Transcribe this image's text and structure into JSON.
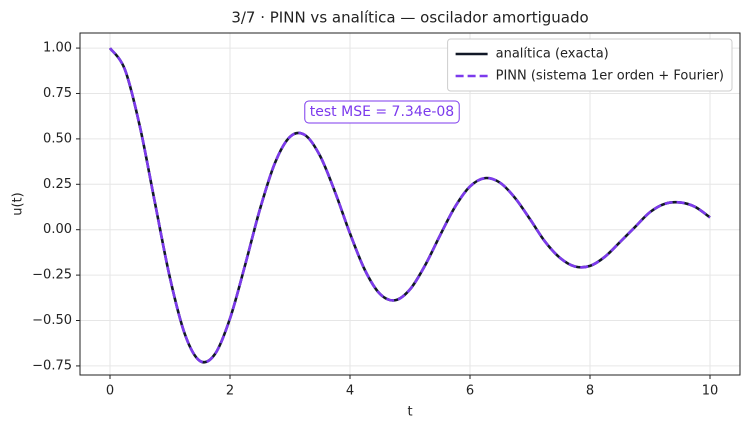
{
  "chart_data": {
    "type": "line",
    "title": "3/7 · PINN vs analítica — oscilador amortiguado",
    "x_label": "t",
    "y_label": "u(t)",
    "annotation": "test MSE = 7.34e-08",
    "x": [
      0,
      0.25,
      0.5,
      0.75,
      1,
      1.25,
      1.5,
      1.75,
      2,
      2.25,
      2.5,
      2.75,
      3,
      3.25,
      3.5,
      3.75,
      4,
      4.25,
      4.5,
      4.75,
      5,
      5.25,
      5.5,
      5.75,
      6,
      6.25,
      6.5,
      6.75,
      7,
      7.25,
      7.5,
      7.75,
      8,
      8.25,
      8.5,
      8.75,
      9,
      9.25,
      9.5,
      9.75,
      10
    ],
    "series": [
      {
        "name": "analítica (exacta)",
        "color": "#111827",
        "dashed": false,
        "values": [
          1.0,
          0.8804,
          0.565,
          0.1467,
          -0.2662,
          -0.5773,
          -0.7229,
          -0.6847,
          -0.4889,
          -0.1968,
          0.1139,
          0.3682,
          0.5116,
          0.521,
          0.407,
          0.208,
          -0.0209,
          -0.2232,
          -0.3537,
          -0.3885,
          -0.3287,
          -0.1972,
          -0.0318,
          0.1253,
          0.238,
          0.284,
          0.2587,
          0.175,
          0.0581,
          -0.0654,
          -0.155,
          -0.2027,
          -0.1992,
          -0.1485,
          -0.0678,
          0.0146,
          0.0967,
          0.1431,
          0.1502,
          0.1261,
          0.0676
        ]
      },
      {
        "name": "PINN (sistema 1er orden + Fourier)",
        "color": "#7c3aed",
        "dashed": true,
        "values": [
          1.0,
          0.8804,
          0.565,
          0.1467,
          -0.2662,
          -0.5773,
          -0.7229,
          -0.6847,
          -0.4889,
          -0.1968,
          0.1139,
          0.3682,
          0.5116,
          0.521,
          0.407,
          0.208,
          -0.0209,
          -0.2232,
          -0.3537,
          -0.3885,
          -0.3287,
          -0.1972,
          -0.0318,
          0.1253,
          0.238,
          0.284,
          0.2587,
          0.175,
          0.0581,
          -0.0654,
          -0.155,
          -0.2027,
          -0.1992,
          -0.1485,
          -0.0678,
          0.0146,
          0.0967,
          0.1431,
          0.1502,
          0.1261,
          0.0676
        ]
      }
    ],
    "xlim": [
      -0.5,
      10.5
    ],
    "ylim": [
      -0.8,
      1.083
    ],
    "xticks": [
      0,
      2,
      4,
      6,
      8,
      10
    ],
    "yticks": [
      {
        "value": -0.75,
        "label": "−0.75"
      },
      {
        "value": -0.5,
        "label": "−0.50"
      },
      {
        "value": -0.25,
        "label": "−0.25"
      },
      {
        "value": 0,
        "label": "0.00"
      },
      {
        "value": 0.25,
        "label": "0.25"
      },
      {
        "value": 0.5,
        "label": "0.50"
      },
      {
        "value": 0.75,
        "label": "0.75"
      },
      {
        "value": 1,
        "label": "1.00"
      }
    ],
    "grid": true,
    "legend": "upper right"
  }
}
